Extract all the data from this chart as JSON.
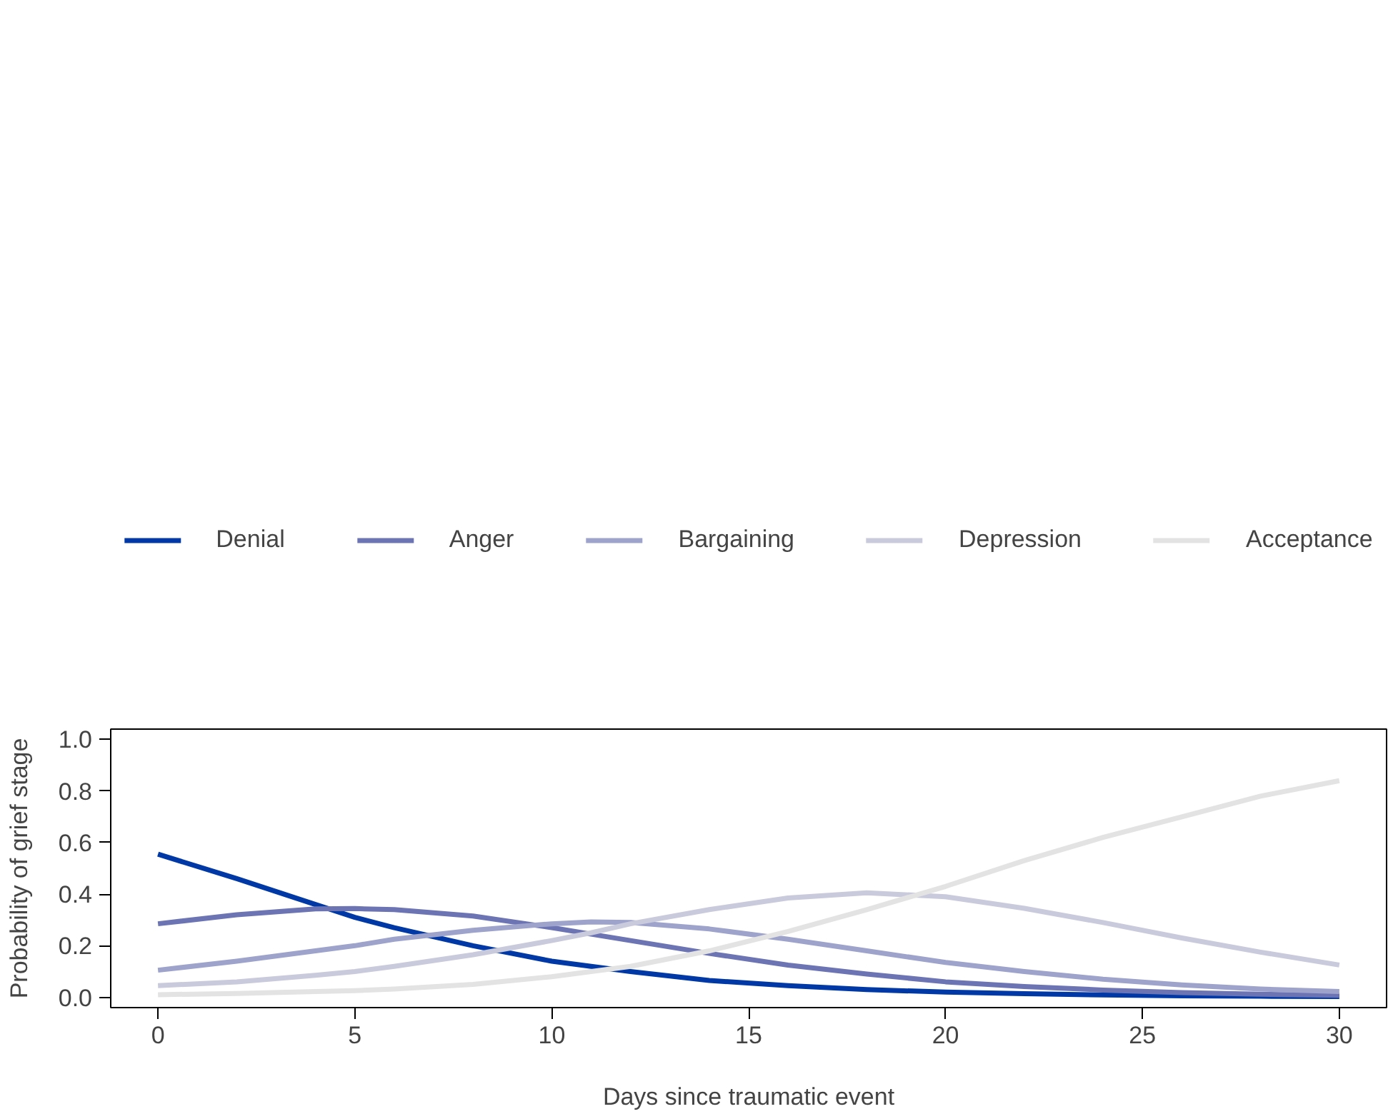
{
  "chart_data": {
    "type": "line",
    "xlabel": "Days since traumatic event",
    "ylabel": "Probability of grief stage",
    "x": [
      0,
      2,
      4,
      5,
      6,
      8,
      10,
      11,
      12,
      14,
      16,
      18,
      20,
      22,
      24,
      26,
      28,
      30
    ],
    "series": [
      {
        "name": "Denial",
        "color": "#0039a6",
        "values": [
          0.555,
          0.46,
          0.36,
          0.31,
          0.27,
          0.2,
          0.14,
          0.12,
          0.1,
          0.065,
          0.045,
          0.03,
          0.02,
          0.014,
          0.009,
          0.006,
          0.004,
          0.003
        ]
      },
      {
        "name": "Anger",
        "color": "#6c74b4",
        "values": [
          0.285,
          0.32,
          0.343,
          0.344,
          0.34,
          0.315,
          0.27,
          0.245,
          0.22,
          0.17,
          0.125,
          0.09,
          0.06,
          0.042,
          0.028,
          0.018,
          0.012,
          0.008
        ]
      },
      {
        "name": "Bargaining",
        "color": "#9ea3cc",
        "values": [
          0.105,
          0.14,
          0.18,
          0.2,
          0.225,
          0.26,
          0.285,
          0.292,
          0.29,
          0.265,
          0.225,
          0.18,
          0.135,
          0.1,
          0.07,
          0.048,
          0.032,
          0.022
        ]
      },
      {
        "name": "Depression",
        "color": "#c9cadc",
        "values": [
          0.045,
          0.06,
          0.085,
          0.1,
          0.12,
          0.165,
          0.22,
          0.25,
          0.285,
          0.34,
          0.385,
          0.405,
          0.39,
          0.345,
          0.29,
          0.23,
          0.175,
          0.125
        ]
      },
      {
        "name": "Acceptance",
        "color": "#e3e3e3",
        "values": [
          0.01,
          0.015,
          0.022,
          0.026,
          0.032,
          0.05,
          0.08,
          0.1,
          0.12,
          0.18,
          0.255,
          0.34,
          0.43,
          0.53,
          0.62,
          0.7,
          0.78,
          0.84
        ]
      }
    ],
    "xlim": [
      -1.2,
      31.2
    ],
    "ylim": [
      -0.04,
      1.04
    ],
    "xticks": [
      0,
      5,
      10,
      15,
      20,
      25,
      30
    ],
    "yticks": [
      {
        "value": 0,
        "label": "0.0"
      },
      {
        "value": 0.2,
        "label": "0.2"
      },
      {
        "value": 0.4,
        "label": "0.4"
      },
      {
        "value": 0.6,
        "label": "0.6"
      },
      {
        "value": 0.8,
        "label": "0.8"
      },
      {
        "value": 1,
        "label": "1.0"
      }
    ],
    "grid": false,
    "legend": "top",
    "marker": "none",
    "line_style": "solid"
  }
}
